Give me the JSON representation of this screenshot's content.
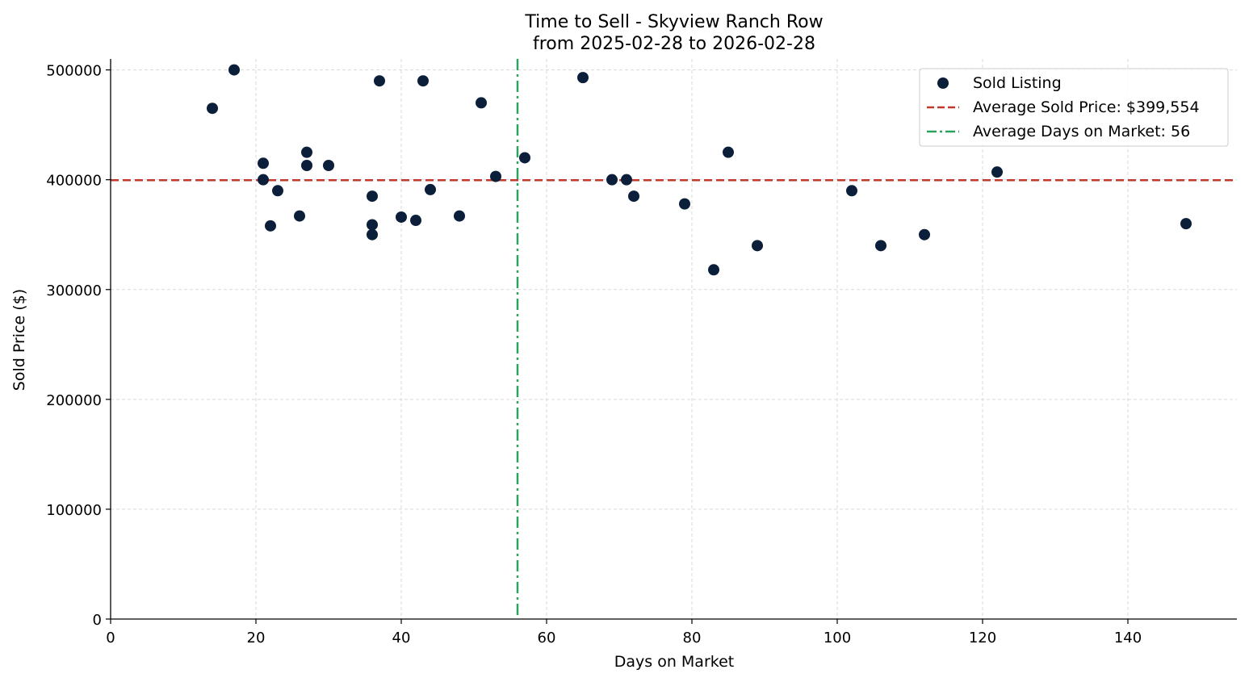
{
  "chart_data": {
    "type": "scatter",
    "title": "Time to Sell - Skyview Ranch Row",
    "subtitle": "from 2025-02-28 to 2026-02-28",
    "xlabel": "Days on Market",
    "ylabel": "Sold Price ($)",
    "xlim": [
      0,
      155
    ],
    "ylim": [
      0,
      510000
    ],
    "xticks": [
      0,
      20,
      40,
      60,
      80,
      100,
      120,
      140
    ],
    "yticks": [
      0,
      100000,
      200000,
      300000,
      400000,
      500000
    ],
    "grid": true,
    "legend_position": "top-right",
    "series": [
      {
        "name": "Sold Listing",
        "color": "#0b1f3a",
        "points": [
          [
            14,
            465000
          ],
          [
            17,
            500000
          ],
          [
            21,
            415000
          ],
          [
            21,
            400000
          ],
          [
            22,
            358000
          ],
          [
            23,
            390000
          ],
          [
            26,
            367000
          ],
          [
            27,
            425000
          ],
          [
            27,
            413000
          ],
          [
            30,
            413000
          ],
          [
            36,
            385000
          ],
          [
            36,
            359000
          ],
          [
            36,
            350000
          ],
          [
            37,
            490000
          ],
          [
            40,
            366000
          ],
          [
            42,
            363000
          ],
          [
            43,
            490000
          ],
          [
            44,
            391000
          ],
          [
            48,
            367000
          ],
          [
            51,
            470000
          ],
          [
            53,
            403000
          ],
          [
            57,
            420000
          ],
          [
            65,
            493000
          ],
          [
            69,
            400000
          ],
          [
            71,
            400000
          ],
          [
            72,
            385000
          ],
          [
            79,
            378000
          ],
          [
            83,
            318000
          ],
          [
            85,
            425000
          ],
          [
            89,
            340000
          ],
          [
            102,
            390000
          ],
          [
            106,
            340000
          ],
          [
            112,
            350000
          ],
          [
            122,
            407000
          ],
          [
            148,
            360000
          ]
        ]
      }
    ],
    "reference_lines": [
      {
        "name": "Average Sold Price: $399,554",
        "axis": "y",
        "value": 399554,
        "color": "#c0392b",
        "style": "dashed"
      },
      {
        "name": "Average Days on Market: 56",
        "axis": "x",
        "value": 56,
        "color": "#2ca25f",
        "style": "dashdot"
      }
    ]
  }
}
